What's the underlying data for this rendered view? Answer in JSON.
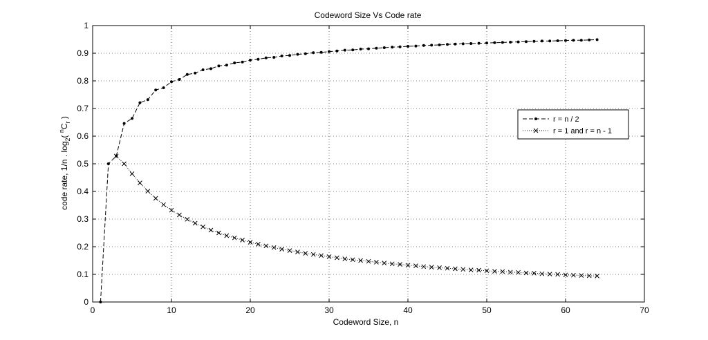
{
  "chart_data": {
    "type": "line",
    "title": "Codeword Size  Vs  Code rate",
    "xlabel": "Codeword Size, n",
    "ylabel": {
      "part1": "code rate, 1/n . log",
      "sub_2": "2",
      "part2": "( ",
      "sup_n": "n",
      "c": "C",
      "sub_r": "r",
      "part3": " )"
    },
    "xlim": [
      0,
      70
    ],
    "ylim": [
      0,
      1
    ],
    "xticks": [
      0,
      10,
      20,
      30,
      40,
      50,
      60,
      70
    ],
    "yticks": [
      0,
      0.1,
      0.2,
      0.3,
      0.4,
      0.5,
      0.6,
      0.7,
      0.8,
      0.9,
      1
    ],
    "xtick_labels": [
      "0",
      "10",
      "20",
      "30",
      "40",
      "50",
      "60",
      "70"
    ],
    "ytick_labels": [
      "0",
      "0.1",
      "0.2",
      "0.3",
      "0.4",
      "0.5",
      "0.6",
      "0.7",
      "0.8",
      "0.9",
      "1"
    ],
    "grid": true,
    "legend_position": "right",
    "series": [
      {
        "name": "r = n / 2",
        "line_style": "dashed",
        "marker": "dot",
        "color": "#000000",
        "x": [
          1,
          2,
          3,
          4,
          5,
          6,
          7,
          8,
          9,
          10,
          11,
          12,
          13,
          14,
          15,
          16,
          17,
          18,
          19,
          20,
          21,
          22,
          23,
          24,
          25,
          26,
          27,
          28,
          29,
          30,
          31,
          32,
          33,
          34,
          35,
          36,
          37,
          38,
          39,
          40,
          41,
          42,
          43,
          44,
          45,
          46,
          47,
          48,
          49,
          50,
          51,
          52,
          53,
          54,
          55,
          56,
          57,
          58,
          59,
          60,
          61,
          62,
          63,
          64
        ],
        "y": [
          0,
          0.5,
          0.528,
          0.646,
          0.664,
          0.721,
          0.732,
          0.767,
          0.775,
          0.797,
          0.805,
          0.823,
          0.828,
          0.84,
          0.844,
          0.854,
          0.857,
          0.865,
          0.868,
          0.875,
          0.878,
          0.883,
          0.885,
          0.89,
          0.892,
          0.896,
          0.898,
          0.902,
          0.903,
          0.906,
          0.908,
          0.911,
          0.912,
          0.915,
          0.916,
          0.918,
          0.92,
          0.922,
          0.923,
          0.925,
          0.926,
          0.928,
          0.929,
          0.93,
          0.932,
          0.933,
          0.934,
          0.935,
          0.936,
          0.937,
          0.938,
          0.939,
          0.94,
          0.941,
          0.942,
          0.943,
          0.944,
          0.944,
          0.945,
          0.946,
          0.947,
          0.947,
          0.948,
          0.949
        ]
      },
      {
        "name": "r = 1 and r = n - 1",
        "line_style": "dotted",
        "marker": "x",
        "color": "#000000",
        "x": [
          3,
          4,
          5,
          6,
          7,
          8,
          9,
          10,
          11,
          12,
          13,
          14,
          15,
          16,
          17,
          18,
          19,
          20,
          21,
          22,
          23,
          24,
          25,
          26,
          27,
          28,
          29,
          30,
          31,
          32,
          33,
          34,
          35,
          36,
          37,
          38,
          39,
          40,
          41,
          42,
          43,
          44,
          45,
          46,
          47,
          48,
          49,
          50,
          51,
          52,
          53,
          54,
          55,
          56,
          57,
          58,
          59,
          60,
          61,
          62,
          63,
          64
        ],
        "y": [
          0.528,
          0.5,
          0.464,
          0.431,
          0.401,
          0.375,
          0.352,
          0.332,
          0.315,
          0.299,
          0.285,
          0.272,
          0.26,
          0.25,
          0.24,
          0.232,
          0.224,
          0.216,
          0.209,
          0.203,
          0.197,
          0.191,
          0.186,
          0.181,
          0.176,
          0.172,
          0.168,
          0.164,
          0.16,
          0.156,
          0.153,
          0.15,
          0.147,
          0.144,
          0.141,
          0.138,
          0.136,
          0.133,
          0.131,
          0.128,
          0.126,
          0.124,
          0.122,
          0.12,
          0.118,
          0.116,
          0.115,
          0.113,
          0.111,
          0.11,
          0.108,
          0.107,
          0.105,
          0.104,
          0.102,
          0.101,
          0.1,
          0.098,
          0.097,
          0.096,
          0.095,
          0.094
        ]
      }
    ]
  }
}
